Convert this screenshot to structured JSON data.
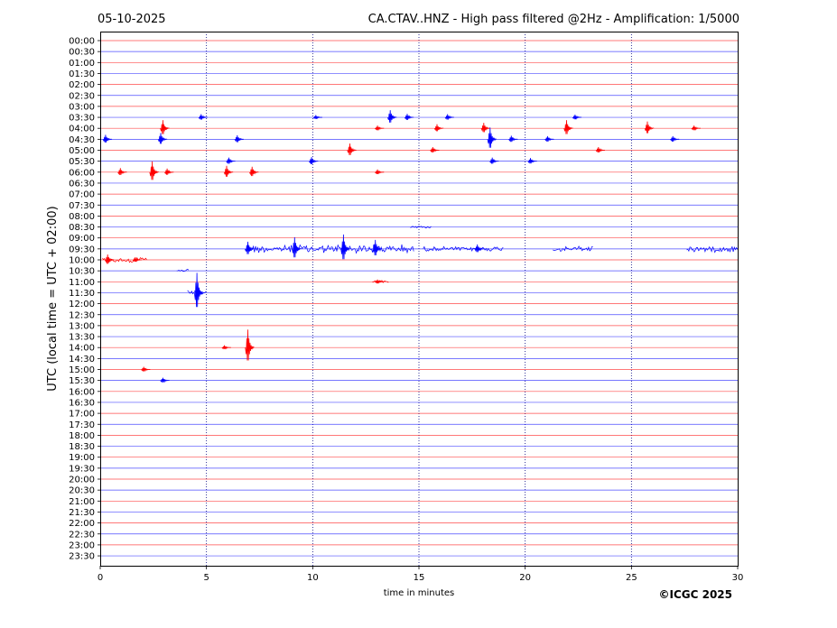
{
  "chart_data": {
    "type": "line",
    "date": "05-10-2025",
    "title": "CA.CTAV..HNZ - High pass filtered @2Hz - Amplification: 1/5000",
    "xlabel": "time in minutes",
    "ylabel": "UTC (local time = UTC + 02:00)",
    "copyright": "©ICGC 2025",
    "xlim": [
      0,
      30
    ],
    "x_ticks": [
      "0",
      "5",
      "10",
      "15",
      "20",
      "25",
      "30"
    ],
    "x_tick_values": [
      0,
      5,
      10,
      15,
      20,
      25,
      30
    ],
    "vertical_grid_minutes": [
      5,
      10,
      15,
      20,
      25
    ],
    "trace_labels": [
      "00:00",
      "00:30",
      "01:00",
      "01:30",
      "02:00",
      "02:30",
      "03:00",
      "03:30",
      "04:00",
      "04:30",
      "05:00",
      "05:30",
      "06:00",
      "06:30",
      "07:00",
      "07:30",
      "08:00",
      "08:30",
      "09:00",
      "09:30",
      "10:00",
      "10:30",
      "11:00",
      "11:30",
      "12:00",
      "12:30",
      "13:00",
      "13:30",
      "14:00",
      "14:30",
      "15:00",
      "15:30",
      "16:00",
      "16:30",
      "17:00",
      "17:30",
      "18:00",
      "18:30",
      "19:00",
      "19:30",
      "20:00",
      "20:30",
      "21:00",
      "21:30",
      "22:00",
      "22:30",
      "23:00",
      "23:30"
    ],
    "trace_colors": [
      "#ff0000",
      "#0000ff"
    ],
    "grid": true,
    "events": [
      {
        "trace": 7,
        "minute": 4.8,
        "amp": 0.35
      },
      {
        "trace": 7,
        "minute": 10.2,
        "amp": 0.25
      },
      {
        "trace": 7,
        "minute": 13.7,
        "amp": 0.8
      },
      {
        "trace": 7,
        "minute": 14.5,
        "amp": 0.4
      },
      {
        "trace": 7,
        "minute": 16.4,
        "amp": 0.35
      },
      {
        "trace": 7,
        "minute": 22.4,
        "amp": 0.3
      },
      {
        "trace": 8,
        "minute": 3.0,
        "amp": 0.9
      },
      {
        "trace": 8,
        "minute": 13.1,
        "amp": 0.3
      },
      {
        "trace": 8,
        "minute": 15.9,
        "amp": 0.45
      },
      {
        "trace": 8,
        "minute": 18.1,
        "amp": 0.6
      },
      {
        "trace": 8,
        "minute": 22.0,
        "amp": 0.9
      },
      {
        "trace": 8,
        "minute": 25.8,
        "amp": 0.75
      },
      {
        "trace": 8,
        "minute": 28.0,
        "amp": 0.3
      },
      {
        "trace": 9,
        "minute": 0.3,
        "amp": 0.5
      },
      {
        "trace": 9,
        "minute": 2.9,
        "amp": 0.7
      },
      {
        "trace": 9,
        "minute": 6.5,
        "amp": 0.45
      },
      {
        "trace": 9,
        "minute": 18.4,
        "amp": 1.3
      },
      {
        "trace": 9,
        "minute": 19.4,
        "amp": 0.4
      },
      {
        "trace": 9,
        "minute": 21.1,
        "amp": 0.35
      },
      {
        "trace": 9,
        "minute": 27.0,
        "amp": 0.35
      },
      {
        "trace": 10,
        "minute": 11.8,
        "amp": 0.75
      },
      {
        "trace": 10,
        "minute": 15.7,
        "amp": 0.35
      },
      {
        "trace": 10,
        "minute": 23.5,
        "amp": 0.35
      },
      {
        "trace": 11,
        "minute": 6.1,
        "amp": 0.4
      },
      {
        "trace": 11,
        "minute": 10.0,
        "amp": 0.45
      },
      {
        "trace": 11,
        "minute": 18.5,
        "amp": 0.4
      },
      {
        "trace": 11,
        "minute": 20.3,
        "amp": 0.35
      },
      {
        "trace": 12,
        "minute": 1.0,
        "amp": 0.45
      },
      {
        "trace": 12,
        "minute": 2.5,
        "amp": 1.2
      },
      {
        "trace": 12,
        "minute": 3.2,
        "amp": 0.4
      },
      {
        "trace": 12,
        "minute": 6.0,
        "amp": 0.7
      },
      {
        "trace": 12,
        "minute": 7.2,
        "amp": 0.6
      },
      {
        "trace": 12,
        "minute": 13.1,
        "amp": 0.3
      },
      {
        "trace": 19,
        "minute": 7.0,
        "amp": 0.8
      },
      {
        "trace": 19,
        "minute": 9.2,
        "amp": 1.3
      },
      {
        "trace": 19,
        "minute": 11.5,
        "amp": 1.6
      },
      {
        "trace": 19,
        "minute": 13.0,
        "amp": 1.0
      },
      {
        "trace": 19,
        "minute": 17.8,
        "amp": 0.5
      },
      {
        "trace": 20,
        "minute": 0.4,
        "amp": 0.6
      },
      {
        "trace": 20,
        "minute": 1.7,
        "amp": 0.3
      },
      {
        "trace": 22,
        "minute": 13.1,
        "amp": 0.25
      },
      {
        "trace": 23,
        "minute": 4.6,
        "amp": 2.2
      },
      {
        "trace": 28,
        "minute": 7.0,
        "amp": 2.0
      },
      {
        "trace": 28,
        "minute": 5.9,
        "amp": 0.25
      },
      {
        "trace": 30,
        "minute": 2.1,
        "amp": 0.3
      },
      {
        "trace": 31,
        "minute": 3.0,
        "amp": 0.3
      }
    ],
    "noise_bands": [
      {
        "trace": 19,
        "from": 6.8,
        "to": 14.8,
        "amp": 0.55
      },
      {
        "trace": 19,
        "from": 15.2,
        "to": 19.0,
        "amp": 0.3
      },
      {
        "trace": 19,
        "from": 21.3,
        "to": 23.2,
        "amp": 0.4
      },
      {
        "trace": 19,
        "from": 27.6,
        "to": 30.0,
        "amp": 0.4
      },
      {
        "trace": 20,
        "from": 0.1,
        "to": 2.2,
        "amp": 0.35
      },
      {
        "trace": 21,
        "from": 3.6,
        "to": 4.2,
        "amp": 0.2
      },
      {
        "trace": 23,
        "from": 4.1,
        "to": 5.0,
        "amp": 0.3
      },
      {
        "trace": 22,
        "from": 12.8,
        "to": 13.6,
        "amp": 0.2
      },
      {
        "trace": 17,
        "from": 14.6,
        "to": 15.6,
        "amp": 0.15
      }
    ]
  }
}
